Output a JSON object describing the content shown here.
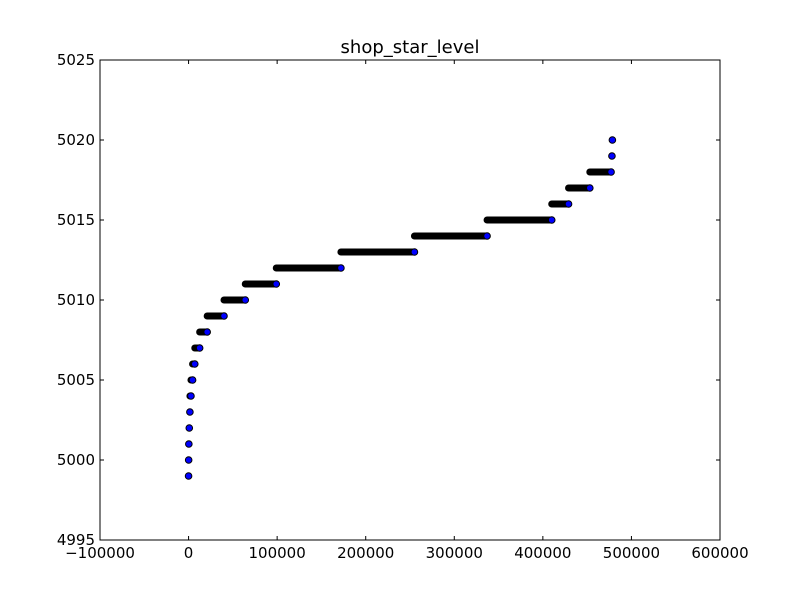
{
  "chart_data": {
    "type": "scatter",
    "title": "shop_star_level",
    "xlabel": "",
    "ylabel": "",
    "xlim": [
      -100000,
      600000
    ],
    "ylim": [
      4995,
      5025
    ],
    "grid": false,
    "legend": "none",
    "x_ticks": [
      -100000,
      0,
      100000,
      200000,
      300000,
      400000,
      500000,
      600000
    ],
    "x_tick_labels": [
      "−100000",
      "0",
      "100000",
      "200000",
      "300000",
      "400000",
      "500000",
      "600000"
    ],
    "y_ticks": [
      4995,
      5000,
      5005,
      5010,
      5015,
      5020,
      5025
    ],
    "y_tick_labels": [
      "4995",
      "5000",
      "5005",
      "5010",
      "5015",
      "5020",
      "5025"
    ],
    "marker_fill": "#0000ff",
    "marker_edge": "#000000",
    "levels": [
      {
        "y": 4999,
        "x_start": 0,
        "x_end": 0
      },
      {
        "y": 5000,
        "x_start": 0,
        "x_end": 100
      },
      {
        "y": 5001,
        "x_start": 100,
        "x_end": 300
      },
      {
        "y": 5002,
        "x_start": 300,
        "x_end": 800
      },
      {
        "y": 5003,
        "x_start": 800,
        "x_end": 1500
      },
      {
        "y": 5004,
        "x_start": 1500,
        "x_end": 2700
      },
      {
        "y": 5005,
        "x_start": 2700,
        "x_end": 4500
      },
      {
        "y": 5006,
        "x_start": 4500,
        "x_end": 7000
      },
      {
        "y": 5007,
        "x_start": 7000,
        "x_end": 12500
      },
      {
        "y": 5008,
        "x_start": 12500,
        "x_end": 21000
      },
      {
        "y": 5009,
        "x_start": 21000,
        "x_end": 40000
      },
      {
        "y": 5010,
        "x_start": 40000,
        "x_end": 64000
      },
      {
        "y": 5011,
        "x_start": 64000,
        "x_end": 99000
      },
      {
        "y": 5012,
        "x_start": 99000,
        "x_end": 172000
      },
      {
        "y": 5013,
        "x_start": 172000,
        "x_end": 255000
      },
      {
        "y": 5014,
        "x_start": 255000,
        "x_end": 337000
      },
      {
        "y": 5015,
        "x_start": 337000,
        "x_end": 410000
      },
      {
        "y": 5016,
        "x_start": 410000,
        "x_end": 429000
      },
      {
        "y": 5017,
        "x_start": 429000,
        "x_end": 453000
      },
      {
        "y": 5018,
        "x_start": 453000,
        "x_end": 477000
      },
      {
        "y": 5019,
        "x_start": 477000,
        "x_end": 478000
      },
      {
        "y": 5020,
        "x_start": 478000,
        "x_end": 478500
      }
    ]
  }
}
